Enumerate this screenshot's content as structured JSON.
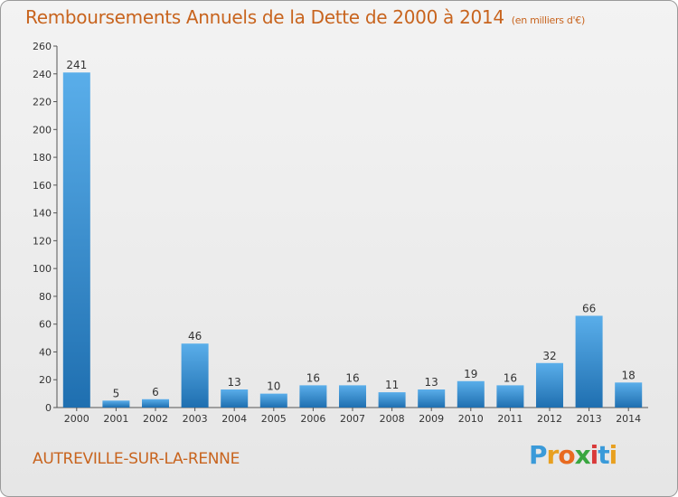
{
  "title": "Remboursements Annuels de la Dette de 2000 à 2014",
  "unit_label": "(en milliers d'€)",
  "commune": "AUTREVILLE-SUR-LA-RENNE",
  "logo": {
    "letters": [
      "P",
      "r",
      "o",
      "x",
      "i",
      "t",
      "i"
    ],
    "colors": [
      "#3a9ad9",
      "#e8a020",
      "#e86a20",
      "#3aa640",
      "#d93a3a",
      "#3a9ad9",
      "#e8a020"
    ]
  },
  "colors": {
    "bar_top": "#5aaeea",
    "bar_bottom": "#1f6fb0",
    "title": "#c8641e"
  },
  "chart_data": {
    "type": "bar",
    "title": "Remboursements Annuels de la Dette de 2000 à 2014",
    "xlabel": "",
    "ylabel": "",
    "categories": [
      "2000",
      "2001",
      "2002",
      "2003",
      "2004",
      "2005",
      "2006",
      "2007",
      "2008",
      "2009",
      "2010",
      "2011",
      "2012",
      "2013",
      "2014"
    ],
    "values": [
      241,
      5,
      6,
      46,
      13,
      10,
      16,
      16,
      11,
      13,
      19,
      16,
      32,
      66,
      18
    ],
    "value_labels": [
      "241",
      "5",
      "6",
      "46",
      "13",
      "10",
      "16",
      "16",
      "11",
      "13",
      "19",
      "16",
      "32",
      "66",
      "18"
    ],
    "ylim": [
      0,
      260
    ],
    "yticks": [
      0,
      20,
      40,
      60,
      80,
      100,
      120,
      140,
      160,
      180,
      200,
      220,
      240,
      260
    ],
    "ytick_labels": [
      "0",
      "20",
      "40",
      "60",
      "80",
      "100",
      "120",
      "140",
      "160",
      "180",
      "200",
      "220",
      "240",
      "260"
    ],
    "grid": false,
    "legend": "none"
  }
}
